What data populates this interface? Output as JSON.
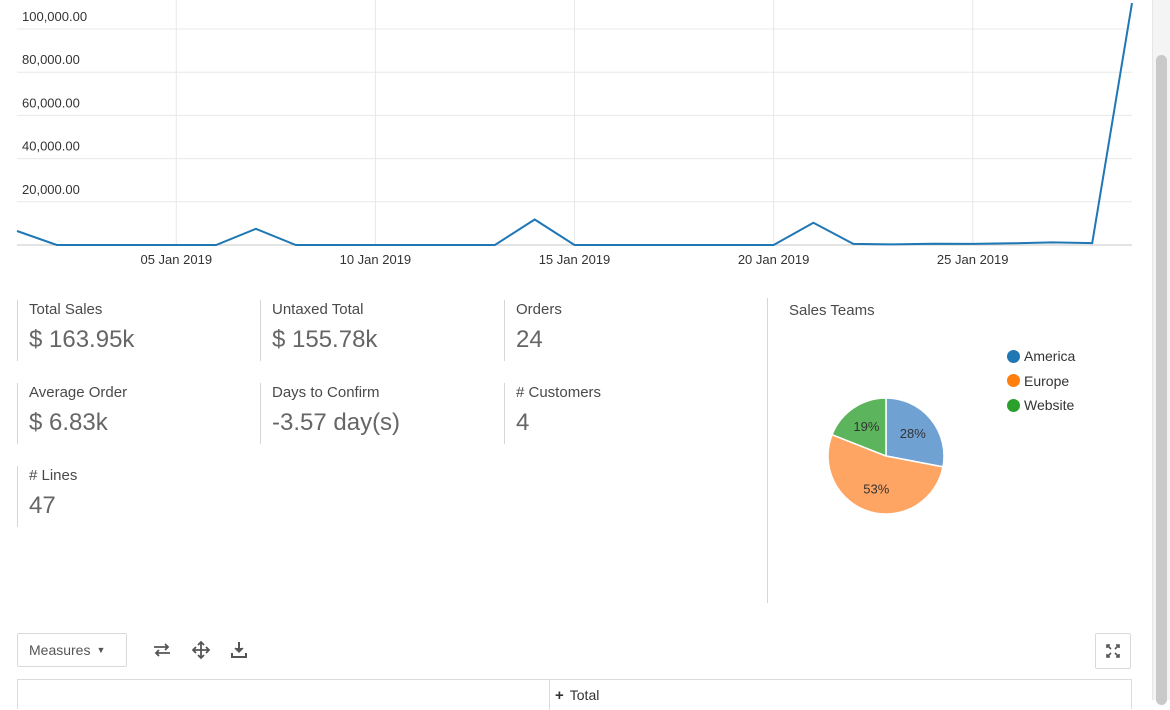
{
  "chart_data": [
    {
      "type": "line",
      "title": "",
      "xlabel": "",
      "ylabel": "",
      "x_tick_labels": [
        "05 Jan 2019",
        "10 Jan 2019",
        "15 Jan 2019",
        "20 Jan 2019",
        "25 Jan 2019"
      ],
      "y_tick_labels": [
        "20,000.00",
        "40,000.00",
        "60,000.00",
        "80,000.00",
        "100,000.00"
      ],
      "y_ticks": [
        20000,
        40000,
        60000,
        80000,
        100000
      ],
      "ylim": [
        0,
        113000
      ],
      "grid": true,
      "color": "#1f77b4",
      "series": [
        {
          "x": [
            "2019-01-01",
            "2019-01-02",
            "2019-01-03",
            "2019-01-04",
            "2019-01-05",
            "2019-01-06",
            "2019-01-07",
            "2019-01-08",
            "2019-01-09",
            "2019-01-10",
            "2019-01-11",
            "2019-01-12",
            "2019-01-13",
            "2019-01-14",
            "2019-01-15",
            "2019-01-16",
            "2019-01-17",
            "2019-01-18",
            "2019-01-19",
            "2019-01-20",
            "2019-01-21",
            "2019-01-22",
            "2019-01-23",
            "2019-01-24",
            "2019-01-25",
            "2019-01-26",
            "2019-01-27",
            "2019-01-28",
            "2019-01-29"
          ],
          "y": [
            6500,
            0,
            0,
            0,
            0,
            0,
            7500,
            0,
            0,
            0,
            0,
            0,
            0,
            11800,
            0,
            0,
            0,
            0,
            0,
            0,
            10300,
            500,
            300,
            600,
            500,
            800,
            1200,
            900,
            112000
          ]
        }
      ]
    },
    {
      "type": "pie",
      "title": "Sales Teams",
      "categories": [
        "America",
        "Europe",
        "Website"
      ],
      "values": [
        28,
        53,
        19
      ],
      "labels": [
        "28%",
        "53%",
        "19%"
      ],
      "colors": [
        "#6fa1d3",
        "#ffa563",
        "#5cb55c"
      ],
      "legend": "top-right"
    }
  ],
  "legend": [
    {
      "label": "America",
      "color": "#1f77b4"
    },
    {
      "label": "Europe",
      "color": "#ff7f0e"
    },
    {
      "label": "Website",
      "color": "#2ca02c"
    }
  ],
  "kpis": [
    {
      "label": "Total Sales",
      "value": "$ 163.95k"
    },
    {
      "label": "Untaxed Total",
      "value": "$ 155.78k"
    },
    {
      "label": "Orders",
      "value": "24"
    },
    {
      "label": "Average Order",
      "value": "$ 6.83k"
    },
    {
      "label": "Days to Confirm",
      "value": "-3.57 day(s)"
    },
    {
      "label": "# Customers",
      "value": "4"
    },
    {
      "label": "# Lines",
      "value": "47"
    }
  ],
  "toolbar": {
    "measures_label": "Measures",
    "icons": [
      "swap-axes-icon",
      "expand-all-icon",
      "download-icon",
      "fullscreen-icon"
    ]
  },
  "pivot": {
    "total_label": "Total"
  }
}
